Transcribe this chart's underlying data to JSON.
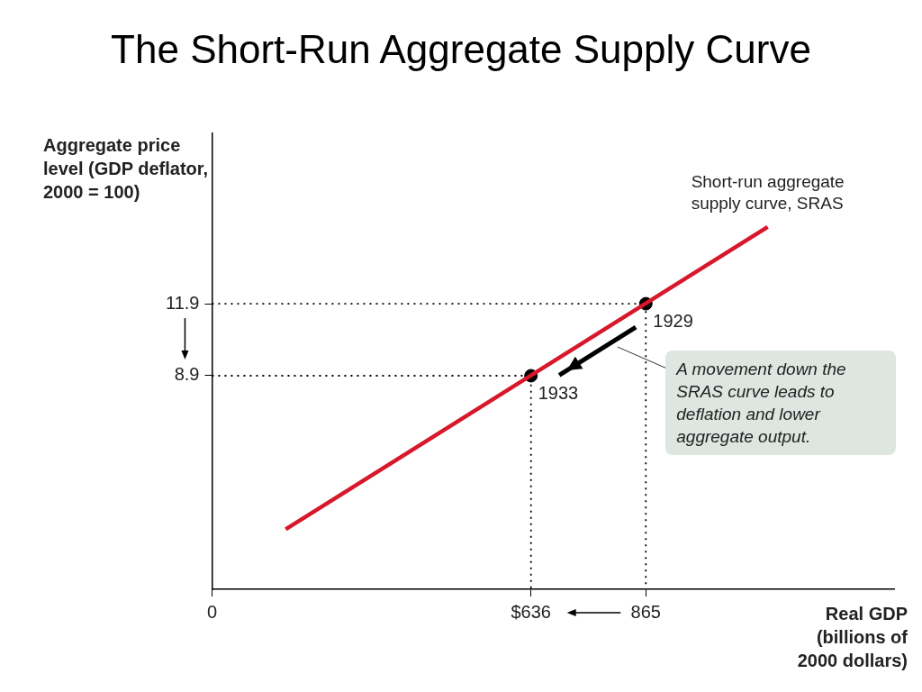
{
  "chart_data": {
    "type": "line",
    "title": "The Short-Run Aggregate Supply Curve",
    "xlabel": "Real GDP (billions of 2000 dollars)",
    "ylabel": "Aggregate price level (GDP deflator, 2000 = 100)",
    "xlim": [
      0,
      1360
    ],
    "ylim": [
      0,
      19
    ],
    "xticks": [
      0,
      {
        "value": 636,
        "label": "$636"
      },
      865
    ],
    "yticks": [
      8.9,
      11.9
    ],
    "grid": false,
    "legend": false,
    "series": [
      {
        "name": "Short-run aggregate supply curve, SRAS",
        "color": "#d7182a",
        "x": [
          147,
          1108
        ],
        "values": [
          2.5,
          15.1
        ],
        "marker": "none",
        "line_style": "solid"
      },
      {
        "color": "#000000",
        "x": [
          0,
          636,
          636
        ],
        "values": [
          8.9,
          8.9,
          0
        ],
        "marker": "none",
        "line_style": "dotted"
      },
      {
        "color": "#000000",
        "x": [
          0,
          865,
          865
        ],
        "values": [
          11.9,
          11.9,
          0
        ],
        "marker": "none",
        "line_style": "dotted"
      },
      {
        "type": "scatter",
        "color": "#000000",
        "x": [
          636,
          865
        ],
        "values": [
          8.9,
          11.9
        ],
        "marker": "circle"
      }
    ],
    "annotations": [
      {
        "text": "1933",
        "x": 636,
        "y": 8.9
      },
      {
        "text": "1929",
        "x": 865,
        "y": 11.9
      },
      "A movement down the SRAS curve leads to deflation and lower aggregate output."
    ]
  }
}
